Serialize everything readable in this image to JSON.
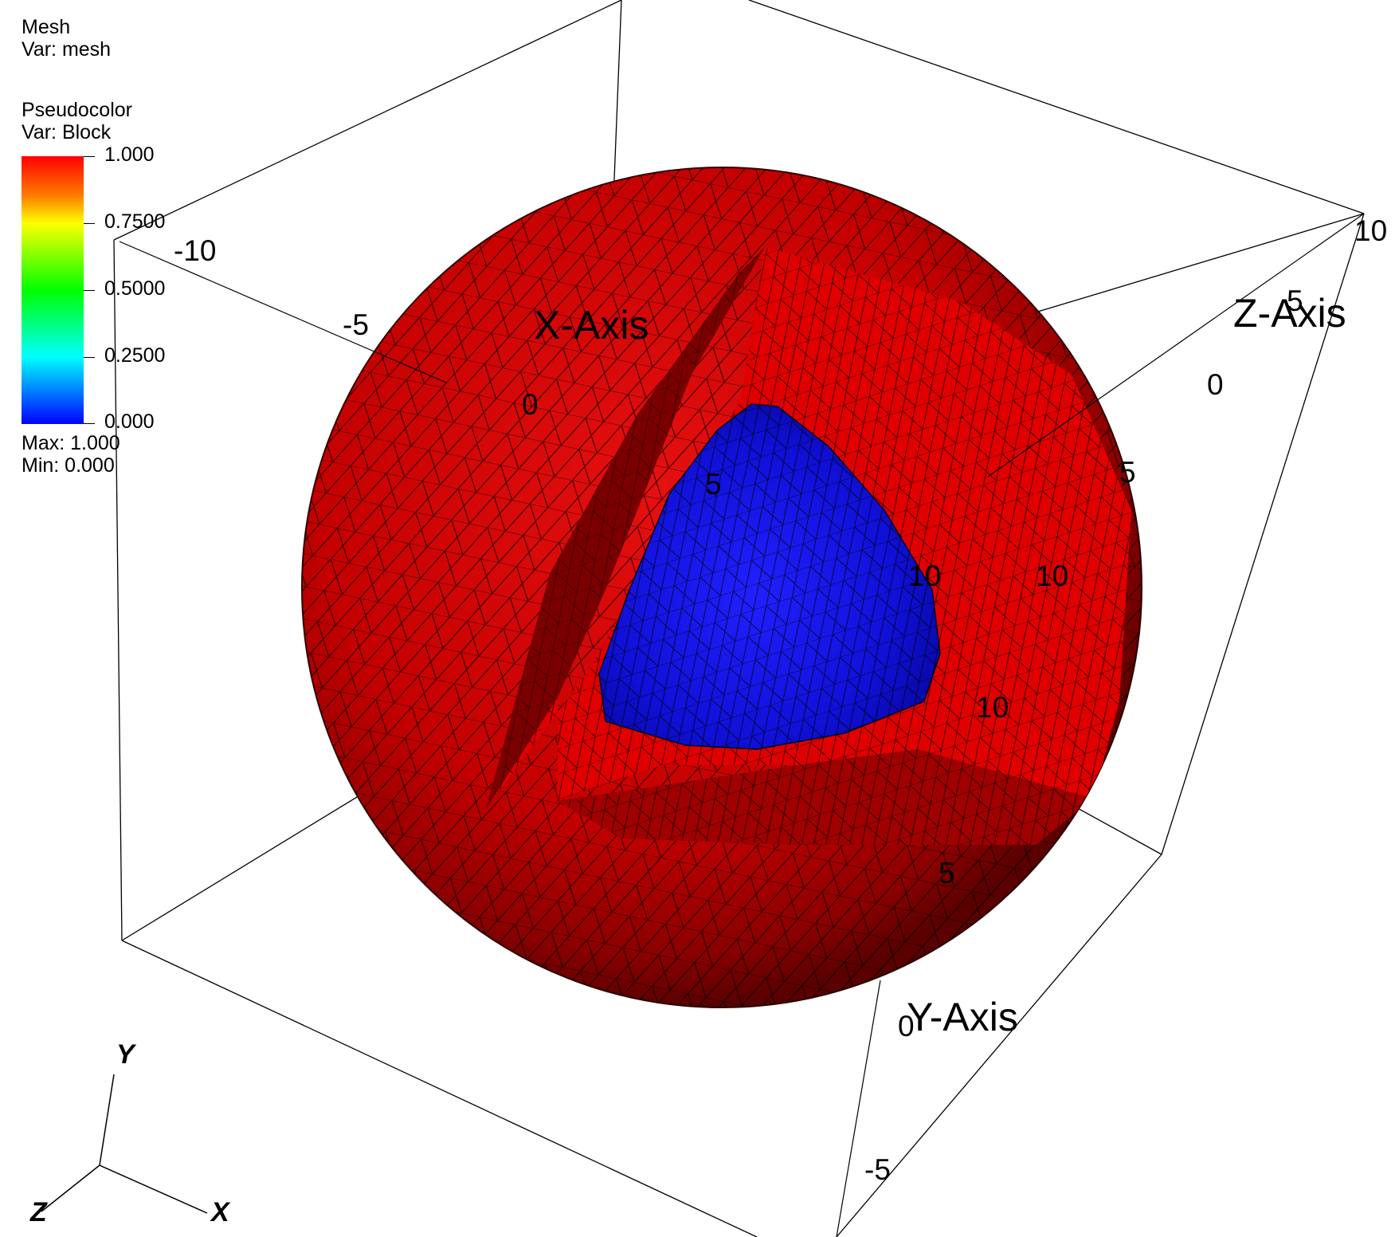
{
  "legend": {
    "mesh_plot": {
      "title": "Mesh",
      "var": "Var: mesh"
    },
    "pseudocolor_plot": {
      "title": "Pseudocolor",
      "var": "Var: Block",
      "scale_labels": [
        "1.000",
        "0.7500",
        "0.5000",
        "0.2500",
        "0.000"
      ],
      "scale_values": [
        1.0,
        0.75,
        0.5,
        0.25,
        0.0
      ],
      "max": "Max:  1.000",
      "min": "Min:  0.000",
      "colormap": [
        "#ff0000",
        "#ffff00",
        "#00ff00",
        "#00ffff",
        "#0000ff"
      ]
    }
  },
  "axes": {
    "x_title": "X-Axis",
    "y_title": "Y-Axis",
    "z_title": "Z-Axis",
    "x_ticks": [
      "-10",
      "-5",
      "0",
      "5",
      "10"
    ],
    "z_ticks": [
      "10",
      "5",
      "0",
      "5",
      "10"
    ],
    "y_ticks": [
      "10",
      "5",
      "0",
      "-5"
    ]
  },
  "triad": {
    "x": "X",
    "y": "Y",
    "z": "Z"
  },
  "colors": {
    "outer_block": "#d40000",
    "inner_block": "#1010e0",
    "background": "#ffffff"
  }
}
